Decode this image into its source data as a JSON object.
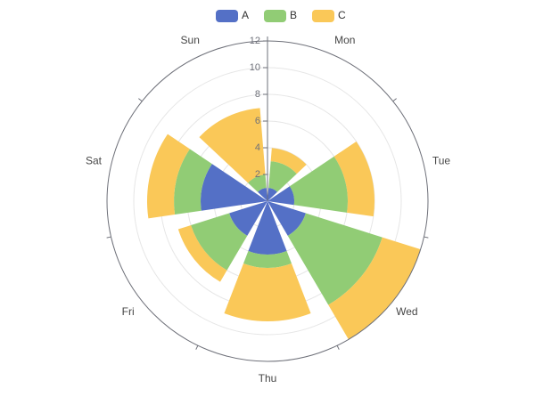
{
  "chart_data": {
    "type": "stacked-polar-bar",
    "categories": [
      "Mon",
      "Tue",
      "Wed",
      "Thu",
      "Fri",
      "Sat",
      "Sun"
    ],
    "series": [
      {
        "name": "A",
        "color": "#5470c6",
        "values": [
          1,
          2,
          3,
          4,
          3,
          5,
          1
        ]
      },
      {
        "name": "B",
        "color": "#91cc75",
        "values": [
          2,
          4,
          6,
          1,
          3,
          2,
          1
        ]
      },
      {
        "name": "C",
        "color": "#fac858",
        "values": [
          1,
          2,
          3,
          4,
          1,
          2,
          5
        ]
      }
    ],
    "radial_axis": {
      "min": 0,
      "max": 12,
      "ticks": [
        0,
        2,
        4,
        6,
        8,
        10,
        12
      ]
    },
    "legend_position": "top-center",
    "grid": true
  }
}
